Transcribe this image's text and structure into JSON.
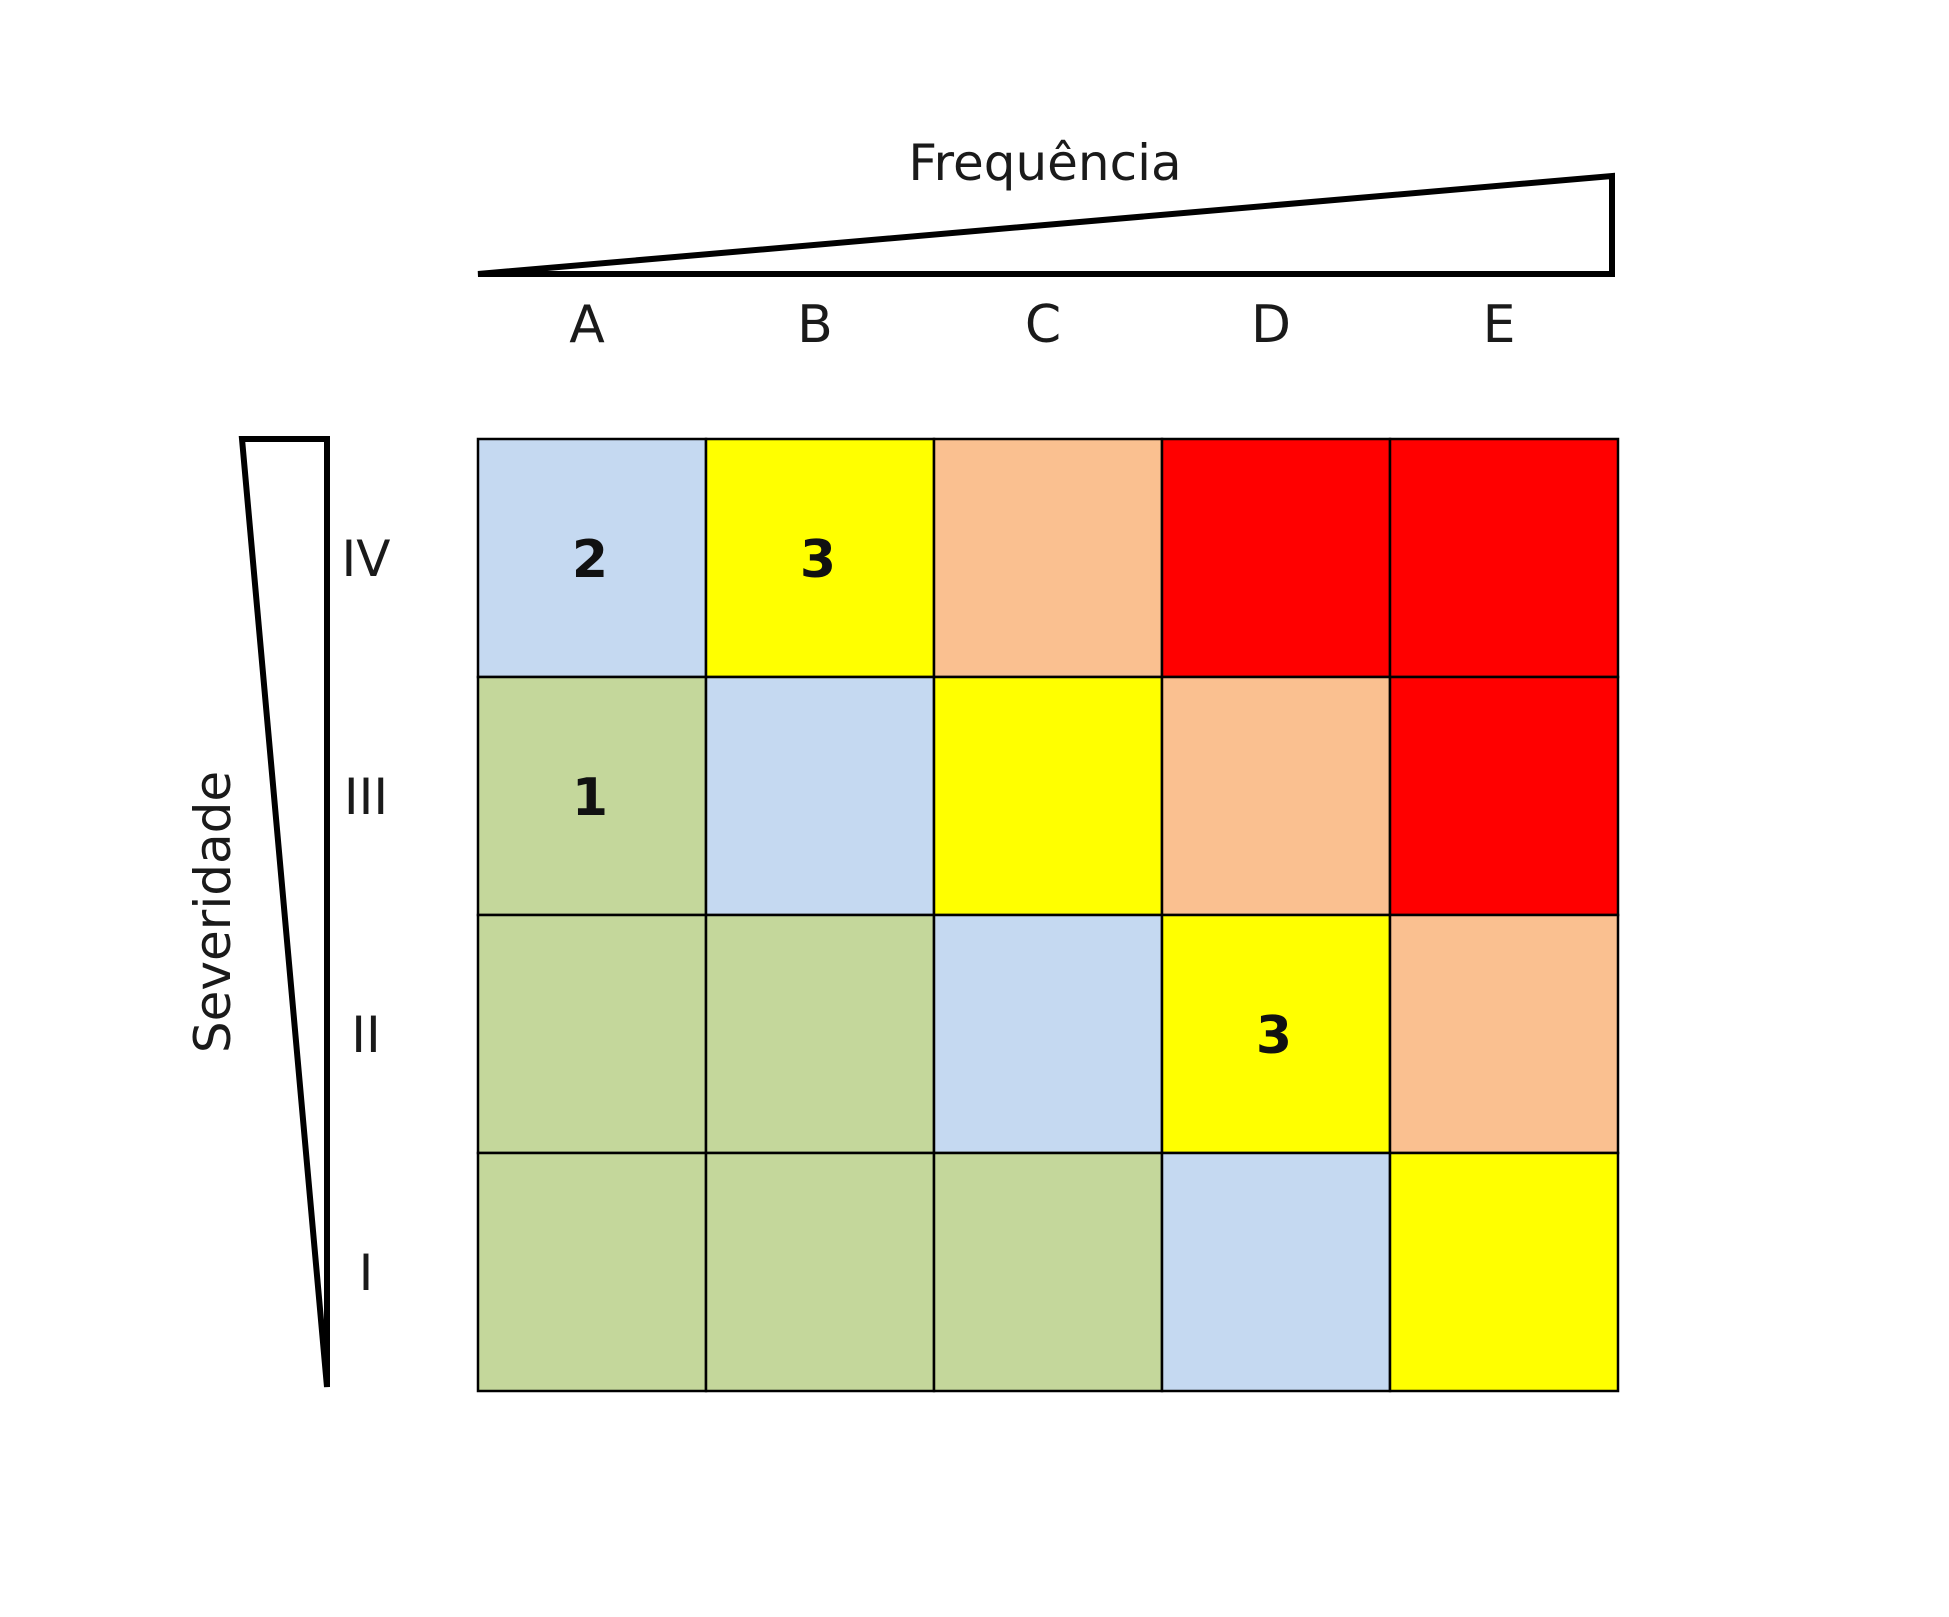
{
  "frequency": {
    "title": "Frequência",
    "columns": [
      "A",
      "B",
      "C",
      "D",
      "E"
    ]
  },
  "severity": {
    "title": "Severidade",
    "rows": [
      "IV",
      "III",
      "II",
      "I"
    ]
  },
  "colors": {
    "blue": "#c5d9f1",
    "yellow": "#ffff00",
    "orange": "#fac090",
    "red": "#ff0000",
    "green": "#c4d79b",
    "grid": "#000000"
  },
  "matrix": [
    [
      {
        "color": "blue",
        "label": "2"
      },
      {
        "color": "yellow",
        "label": "3"
      },
      {
        "color": "orange",
        "label": ""
      },
      {
        "color": "red",
        "label": ""
      },
      {
        "color": "red",
        "label": ""
      }
    ],
    [
      {
        "color": "green",
        "label": "1"
      },
      {
        "color": "blue",
        "label": ""
      },
      {
        "color": "yellow",
        "label": ""
      },
      {
        "color": "orange",
        "label": ""
      },
      {
        "color": "red",
        "label": ""
      }
    ],
    [
      {
        "color": "green",
        "label": ""
      },
      {
        "color": "green",
        "label": ""
      },
      {
        "color": "blue",
        "label": ""
      },
      {
        "color": "yellow",
        "label": "3"
      },
      {
        "color": "orange",
        "label": ""
      }
    ],
    [
      {
        "color": "green",
        "label": ""
      },
      {
        "color": "green",
        "label": ""
      },
      {
        "color": "green",
        "label": ""
      },
      {
        "color": "blue",
        "label": ""
      },
      {
        "color": "yellow",
        "label": ""
      }
    ]
  ]
}
